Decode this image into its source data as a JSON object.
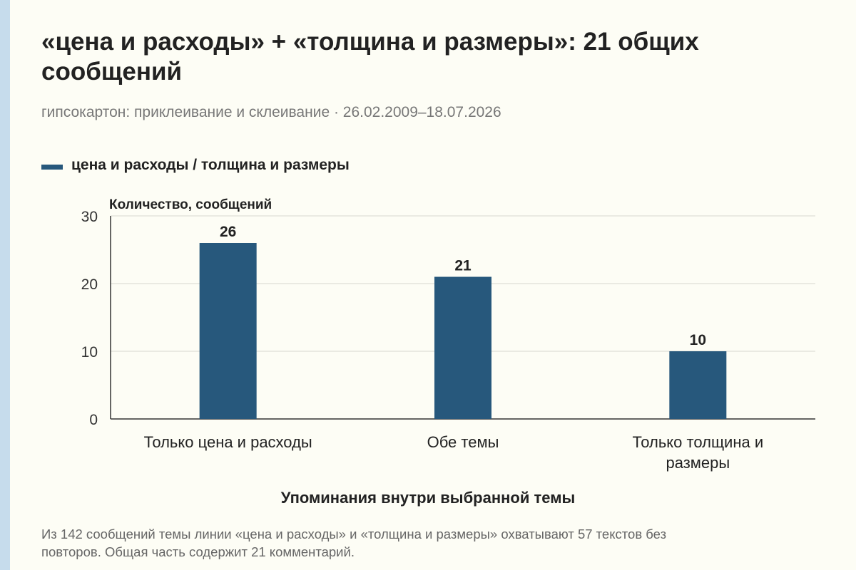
{
  "header": {
    "title": "«цена и расходы» + «толщина и размеры»: 21 общих сообщений",
    "subtitle": "гипсокартон: приклеивание и склеивание · 26.02.2009–18.07.2026"
  },
  "footer": {
    "note": "Из 142 сообщений темы линии «цена и расходы» и «толщина и размеры» охватывают 57 текстов без повторов. Общая часть содержит 21 комментарий."
  },
  "chart_data": {
    "type": "bar",
    "title": "«цена и расходы» + «толщина и размеры»: 21 общих сообщений",
    "subtitle": "гипсокартон: приклеивание и склеивание · 26.02.2009–18.07.2026",
    "xlabel": "Упоминания внутри выбранной темы",
    "ylabel": "Количество, сообщений",
    "ylim": [
      0,
      30
    ],
    "yticks": [
      0,
      10,
      20,
      30
    ],
    "grid": true,
    "legend": {
      "placement": "top-left",
      "entries": [
        "цена и расходы / толщина и размеры"
      ]
    },
    "categories": [
      "Только цена и расходы",
      "Обе темы",
      "Только толщина и размеры"
    ],
    "series": [
      {
        "name": "цена и расходы / толщина и размеры",
        "values": [
          26,
          21,
          10
        ],
        "color": "#27587c"
      }
    ]
  }
}
